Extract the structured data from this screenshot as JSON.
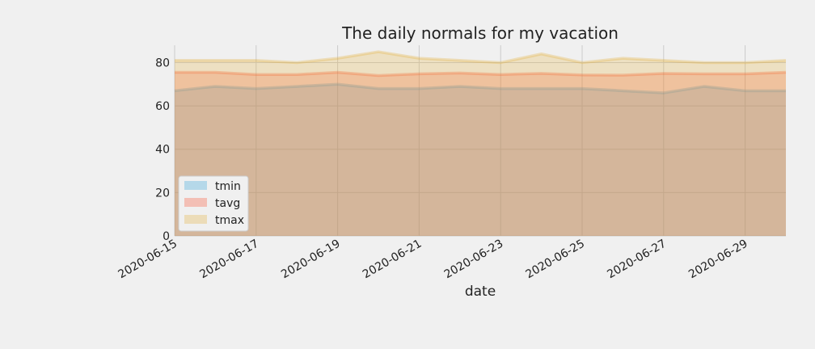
{
  "chart_data": {
    "type": "area",
    "title": "The daily normals for my vacation",
    "xlabel": "date",
    "ylabel": "",
    "ylim": [
      0,
      88
    ],
    "yticks": [
      0,
      20,
      40,
      60,
      80
    ],
    "x": [
      "2020-06-15",
      "2020-06-16",
      "2020-06-17",
      "2020-06-18",
      "2020-06-19",
      "2020-06-20",
      "2020-06-21",
      "2020-06-22",
      "2020-06-23",
      "2020-06-24",
      "2020-06-25",
      "2020-06-26",
      "2020-06-27",
      "2020-06-28",
      "2020-06-29",
      "2020-06-30"
    ],
    "xtick_labels": [
      "2020-06-15",
      "2020-06-17",
      "2020-06-19",
      "2020-06-21",
      "2020-06-23",
      "2020-06-25",
      "2020-06-27",
      "2020-06-29"
    ],
    "grid": true,
    "stacked": false,
    "legend_position": "lower-left",
    "series": [
      {
        "name": "tmin",
        "color": "#30a2da",
        "values": [
          67,
          69,
          68,
          69,
          70,
          68,
          68,
          69,
          68,
          68,
          68,
          67,
          66,
          69,
          67,
          67
        ]
      },
      {
        "name": "tavg",
        "color": "#fc4f30",
        "values": [
          75.5,
          75.5,
          74.5,
          74.5,
          75.5,
          74,
          74.8,
          75.2,
          74.5,
          75,
          74.3,
          74.2,
          75,
          74.8,
          74.8,
          75.5
        ]
      },
      {
        "name": "tmax",
        "color": "#e5ae38",
        "values": [
          81,
          81,
          81,
          80,
          82,
          85,
          82,
          81,
          80,
          84,
          80,
          82,
          81,
          80,
          80,
          81
        ]
      }
    ]
  }
}
